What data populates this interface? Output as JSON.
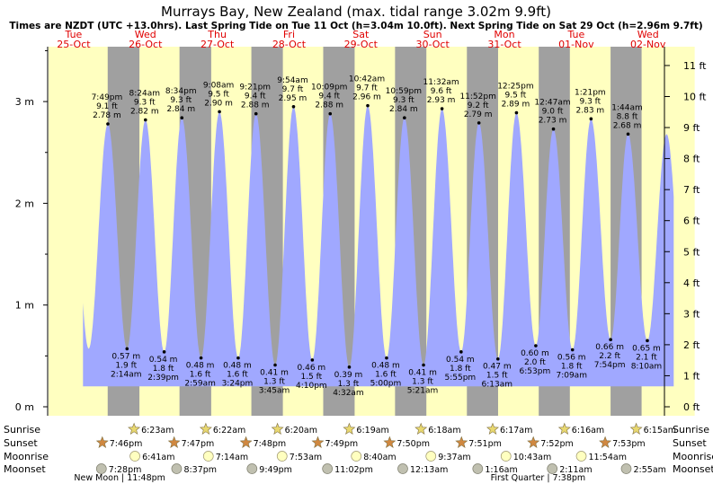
{
  "title": "Murrays Bay, New Zealand (max. tidal range 3.02m 9.9ft)",
  "subtitle": "Times are NZDT (UTC +13.0hrs). Last Spring Tide on Tue 11 Oct (h=3.04m 10.0ft). Next Spring Tide on Sat 29 Oct (h=2.96m 9.7ft)",
  "colors": {
    "water": "#a0a8ff",
    "day": "#ffffc0",
    "night": "#a0a0a0",
    "date_text": "#e00000",
    "sun": "#e0d060",
    "moon": "#ffffc0"
  },
  "chart_data": {
    "type": "area",
    "x_unit": "hours from Tue 25-Oct 00:00 NZDT",
    "xlim": [
      0,
      216
    ],
    "ylim_m": [
      0,
      3.5
    ],
    "left_ticks": [
      "0 m",
      "1 m",
      "2 m",
      "3 m"
    ],
    "right_ticks": [
      "0 ft",
      "1 ft",
      "2 ft",
      "3 ft",
      "4 ft",
      "5 ft",
      "6 ft",
      "7 ft",
      "8 ft",
      "9 ft",
      "10 ft",
      "11 ft"
    ],
    "days": [
      {
        "dow": "Tue",
        "date": "25-Oct"
      },
      {
        "dow": "Wed",
        "date": "26-Oct"
      },
      {
        "dow": "Thu",
        "date": "27-Oct"
      },
      {
        "dow": "Fri",
        "date": "28-Oct"
      },
      {
        "dow": "Sat",
        "date": "29-Oct"
      },
      {
        "dow": "Sun",
        "date": "30-Oct"
      },
      {
        "dow": "Mon",
        "date": "31-Oct"
      },
      {
        "dow": "Tue",
        "date": "01-Nov"
      },
      {
        "dow": "Wed",
        "date": "02-Nov"
      }
    ],
    "tides": [
      {
        "kind": "high",
        "time": "7:49 pm",
        "ft": "9.1 ft",
        "m": 2.78,
        "h": 19.82
      },
      {
        "kind": "low",
        "time": "2:14 am",
        "ft": "1.9 ft",
        "m": 0.57,
        "h": 26.23
      },
      {
        "kind": "high",
        "time": "8:24 am",
        "ft": "9.3 ft",
        "m": 2.82,
        "h": 32.4
      },
      {
        "kind": "low",
        "time": "2:39 pm",
        "ft": "1.8 ft",
        "m": 0.54,
        "h": 38.65
      },
      {
        "kind": "high",
        "time": "8:34 pm",
        "ft": "9.3 ft",
        "m": 2.84,
        "h": 44.57
      },
      {
        "kind": "low",
        "time": "2:59 am",
        "ft": "1.6 ft",
        "m": 0.48,
        "h": 50.98
      },
      {
        "kind": "high",
        "time": "9:08 am",
        "ft": "9.5 ft",
        "m": 2.9,
        "h": 57.13
      },
      {
        "kind": "low",
        "time": "3:24 pm",
        "ft": "1.6 ft",
        "m": 0.48,
        "h": 63.4
      },
      {
        "kind": "high",
        "time": "9:21 pm",
        "ft": "9.4 ft",
        "m": 2.88,
        "h": 69.35
      },
      {
        "kind": "low",
        "time": "3:45 am",
        "ft": "1.3 ft",
        "m": 0.41,
        "h": 75.75
      },
      {
        "kind": "high",
        "time": "9:54 am",
        "ft": "9.7 ft",
        "m": 2.95,
        "h": 81.9
      },
      {
        "kind": "low",
        "time": "4:10 pm",
        "ft": "1.5 ft",
        "m": 0.46,
        "h": 88.17
      },
      {
        "kind": "high",
        "time": "10:09 pm",
        "ft": "9.4 ft",
        "m": 2.88,
        "h": 94.15
      },
      {
        "kind": "low",
        "time": "4:32 am",
        "ft": "1.3 ft",
        "m": 0.39,
        "h": 100.53
      },
      {
        "kind": "high",
        "time": "10:42 am",
        "ft": "9.7 ft",
        "m": 2.96,
        "h": 106.7
      },
      {
        "kind": "low",
        "time": "5:00 pm",
        "ft": "1.6 ft",
        "m": 0.48,
        "h": 113.0
      },
      {
        "kind": "high",
        "time": "10:59 pm",
        "ft": "9.3 ft",
        "m": 2.84,
        "h": 118.98
      },
      {
        "kind": "low",
        "time": "5:21 am",
        "ft": "1.3 ft",
        "m": 0.41,
        "h": 125.35
      },
      {
        "kind": "high",
        "time": "11:32 am",
        "ft": "9.6 ft",
        "m": 2.93,
        "h": 131.53
      },
      {
        "kind": "low",
        "time": "5:55 pm",
        "ft": "1.8 ft",
        "m": 0.54,
        "h": 137.92
      },
      {
        "kind": "high",
        "time": "11:52 pm",
        "ft": "9.2 ft",
        "m": 2.79,
        "h": 143.87
      },
      {
        "kind": "low",
        "time": "6:13 am",
        "ft": "1.5 ft",
        "m": 0.47,
        "h": 150.22
      },
      {
        "kind": "high",
        "time": "12:25 pm",
        "ft": "9.5 ft",
        "m": 2.89,
        "h": 156.42
      },
      {
        "kind": "low",
        "time": "6:53 pm",
        "ft": "2.0 ft",
        "m": 0.6,
        "h": 162.88
      },
      {
        "kind": "high",
        "time": "12:47 am",
        "ft": "9.0 ft",
        "m": 2.73,
        "h": 168.78
      },
      {
        "kind": "low",
        "time": "7:09 am",
        "ft": "1.8 ft",
        "m": 0.56,
        "h": 175.15
      },
      {
        "kind": "high",
        "time": "1:21 pm",
        "ft": "9.3 ft",
        "m": 2.83,
        "h": 181.35
      },
      {
        "kind": "low",
        "time": "7:54 pm",
        "ft": "2.2 ft",
        "m": 0.66,
        "h": 187.9
      },
      {
        "kind": "high",
        "time": "1:44 am",
        "ft": "8.8 ft",
        "m": 2.68,
        "h": 193.73
      },
      {
        "kind": "low",
        "time": "8:10 am",
        "ft": "2.1 ft",
        "m": 0.65,
        "h": 200.17
      }
    ],
    "sun": [
      {
        "sunrise": "",
        "sunset": "7:46pm",
        "sunrise_h": null,
        "sunset_h": 19.77
      },
      {
        "sunrise": "6:23am",
        "sunset": "7:47pm",
        "sunrise_h": 30.38,
        "sunset_h": 43.78
      },
      {
        "sunrise": "6:22am",
        "sunset": "7:48pm",
        "sunrise_h": 54.37,
        "sunset_h": 67.8
      },
      {
        "sunrise": "6:20am",
        "sunset": "7:49pm",
        "sunrise_h": 78.33,
        "sunset_h": 91.82
      },
      {
        "sunrise": "6:19am",
        "sunset": "7:50pm",
        "sunrise_h": 102.32,
        "sunset_h": 115.83
      },
      {
        "sunrise": "6:18am",
        "sunset": "7:51pm",
        "sunrise_h": 126.3,
        "sunset_h": 139.85
      },
      {
        "sunrise": "6:17am",
        "sunset": "7:52pm",
        "sunrise_h": 150.28,
        "sunset_h": 163.87
      },
      {
        "sunrise": "6:16am",
        "sunset": "7:53pm",
        "sunrise_h": 174.27,
        "sunset_h": 187.88
      },
      {
        "sunrise": "6:15am",
        "sunset": "",
        "sunrise_h": 198.25,
        "sunset_h": null
      }
    ],
    "moon": [
      {
        "moonrise": "",
        "moonset": "7:28pm",
        "moonrise_h": null,
        "moonset_h": 19.47
      },
      {
        "moonrise": "6:41am",
        "moonset": "8:37pm",
        "moonrise_h": 30.68,
        "moonset_h": 44.62
      },
      {
        "moonrise": "7:14am",
        "moonset": "9:49pm",
        "moonrise_h": 55.23,
        "moonset_h": 69.82
      },
      {
        "moonrise": "7:53am",
        "moonset": "11:02pm",
        "moonrise_h": 79.88,
        "moonset_h": 95.03
      },
      {
        "moonrise": "8:40am",
        "moonset": "12:13am",
        "moonrise_h": 104.67,
        "moonset_h": 120.22
      },
      {
        "moonrise": "9:37am",
        "moonset": "1:16am",
        "moonrise_h": 129.62,
        "moonset_h": 145.27
      },
      {
        "moonrise": "10:43am",
        "moonset": "2:11am",
        "moonrise_h": 154.72,
        "moonset_h": 170.18
      },
      {
        "moonrise": "11:54am",
        "moonset": "2:55am",
        "moonrise_h": 179.9,
        "moonset_h": 194.92
      }
    ],
    "row_labels": [
      "Sunrise",
      "Sunset",
      "Moonrise",
      "Moonset"
    ],
    "moon_phases": [
      {
        "text": "New Moon | 11:48pm",
        "h": 23.8
      },
      {
        "text": "First Quarter | 7:38pm",
        "h": 163.63
      }
    ]
  }
}
